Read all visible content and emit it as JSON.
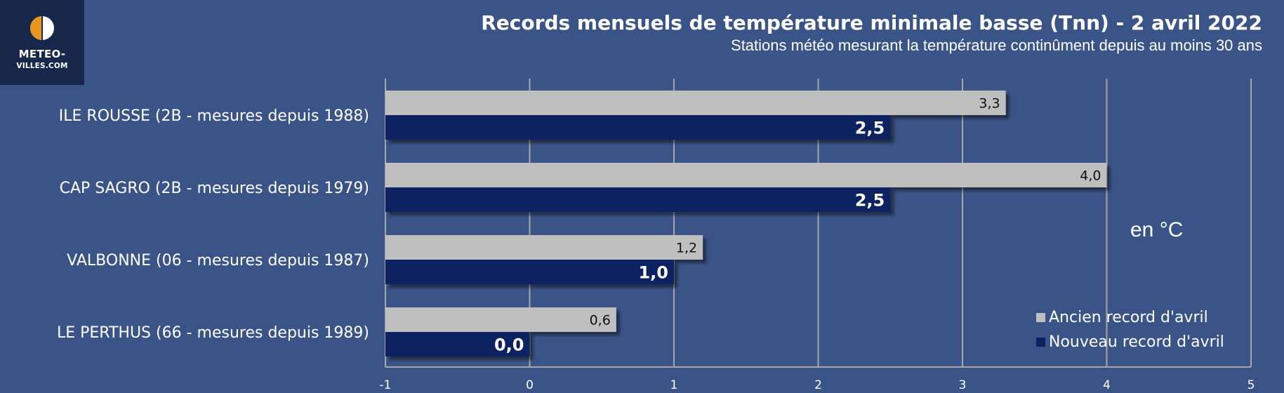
{
  "logo": {
    "line1": "METEO-",
    "line2": "VILLES.COM"
  },
  "colors": {
    "background": "#3b5487",
    "old_record": "#bfbfbf",
    "new_record": "#0f2260",
    "grid": "#a6a6a6",
    "logo_box": "#17284a",
    "logo_orange": "#e8961e"
  },
  "unit_label": "en °C",
  "chart_data": {
    "type": "bar",
    "orientation": "horizontal",
    "title": "Records mensuels de température minimale basse (Tnn) - 2 avril 2022",
    "subtitle": "Stations météo mesurant la température continûment depuis au moins 30 ans",
    "categories": [
      "ILE ROUSSE  (2B - mesures depuis 1988)",
      "CAP SAGRO (2B - mesures depuis 1979)",
      "VALBONNE (06 - mesures depuis 1987)",
      "LE PERTHUS (66 - mesures depuis 1989)"
    ],
    "series": [
      {
        "name": "Ancien record d'avril",
        "values": [
          3.3,
          4.0,
          1.2,
          0.6
        ],
        "labels": [
          "3,3",
          "4,0",
          "1,2",
          "0,6"
        ],
        "color": "#bfbfbf"
      },
      {
        "name": "Nouveau record d'avril",
        "values": [
          2.5,
          2.5,
          1.0,
          0.0
        ],
        "labels": [
          "2,5",
          "2,5",
          "1,0",
          "0,0"
        ],
        "color": "#0f2260"
      }
    ],
    "xlim": [
      -1,
      5
    ],
    "xticks": [
      "-1",
      "0",
      "1",
      "2",
      "3",
      "4",
      "5"
    ],
    "grid": true,
    "legend_position": "bottom-right"
  }
}
